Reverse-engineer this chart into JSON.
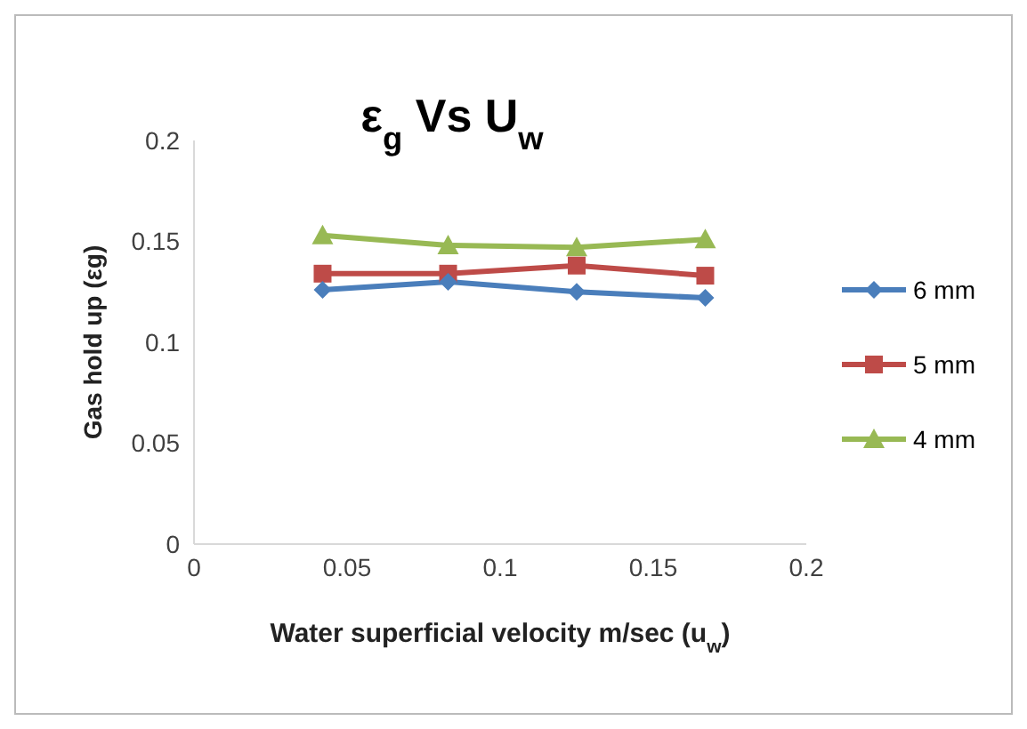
{
  "chart_data": {
    "type": "line",
    "title": "ε$_{g}$ Vs U$_{w}$",
    "xlabel": "Water superficial velocity m/sec (u$_{w}$)",
    "ylabel": "Gas hold up (εg)",
    "x": [
      0.042,
      0.083,
      0.125,
      0.167
    ],
    "xlim": [
      0,
      0.2
    ],
    "xticks": [
      0,
      0.05,
      0.1,
      0.15,
      0.2
    ],
    "ylim": [
      0,
      0.2
    ],
    "yticks": [
      0,
      0.05,
      0.1,
      0.15,
      0.2
    ],
    "grid": false,
    "legend": "right",
    "line_style": "solid",
    "series": [
      {
        "name": "6 mm",
        "color": "#4a7ebb",
        "marker": "diamond",
        "values": [
          0.126,
          0.13,
          0.125,
          0.122
        ]
      },
      {
        "name": "5 mm",
        "color": "#be4b48",
        "marker": "square",
        "values": [
          0.134,
          0.134,
          0.138,
          0.133
        ]
      },
      {
        "name": "4 mm",
        "color": "#98b954",
        "marker": "triangle",
        "values": [
          0.153,
          0.148,
          0.147,
          0.151
        ]
      }
    ]
  }
}
